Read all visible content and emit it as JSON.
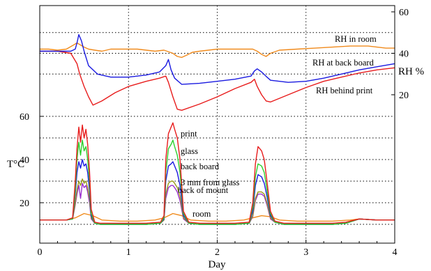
{
  "chart_data": {
    "type": "line",
    "xlabel": "Day",
    "ylabel_left": "T°C",
    "ylabel_right": "RH %",
    "xlim": [
      0,
      4
    ],
    "x_ticks": [
      0,
      1,
      2,
      3,
      4
    ],
    "ylim_temperature": [
      0,
      60
    ],
    "y_ticks_temperature": [
      20,
      40,
      60
    ],
    "ylim_rh": [
      0,
      60
    ],
    "y_ticks_rh": [
      20,
      40,
      60
    ],
    "grid": true,
    "series": [
      {
        "name": "RH in room",
        "axis": "rh",
        "color": "#f08a1c",
        "x": [
          0,
          0.1,
          0.2,
          0.3,
          0.38,
          0.42,
          0.46,
          0.5,
          0.55,
          0.62,
          0.7,
          0.8,
          0.9,
          1.0,
          1.1,
          1.2,
          1.3,
          1.4,
          1.5,
          1.55,
          1.6,
          1.65,
          1.72,
          1.8,
          1.9,
          2.0,
          2.2,
          2.4,
          2.45,
          2.5,
          2.55,
          2.6,
          2.7,
          2.9,
          3.1,
          3.3,
          3.5,
          3.6,
          3.7,
          3.8,
          3.9,
          4.0
        ],
        "values": [
          42,
          42,
          41.5,
          42,
          44,
          45,
          44,
          43,
          42,
          41.5,
          41,
          42,
          42,
          42,
          42,
          41.5,
          41,
          41.5,
          40,
          38.5,
          38,
          39,
          40.5,
          41,
          41.5,
          42,
          42,
          42,
          41,
          39.5,
          38.5,
          40,
          41.5,
          42,
          42.5,
          43,
          43.5,
          43.5,
          43.5,
          43,
          42.5,
          42.5
        ]
      },
      {
        "name": "RH at back board",
        "axis": "rh",
        "color": "#1a1ae0",
        "x": [
          0,
          0.2,
          0.35,
          0.4,
          0.42,
          0.44,
          0.47,
          0.5,
          0.55,
          0.65,
          0.8,
          1.0,
          1.2,
          1.35,
          1.42,
          1.45,
          1.48,
          1.52,
          1.6,
          1.8,
          2.0,
          2.2,
          2.38,
          2.42,
          2.45,
          2.5,
          2.56,
          2.6,
          2.8,
          3.0,
          3.2,
          3.4,
          3.6,
          3.8,
          4.0
        ],
        "values": [
          41,
          41,
          41,
          42,
          45,
          49,
          46,
          41,
          34,
          30,
          28.5,
          28.5,
          29.5,
          31,
          34,
          37,
          32,
          28,
          25,
          25.5,
          26.5,
          27.5,
          29,
          31.5,
          32.5,
          31,
          28.5,
          27,
          26,
          26.5,
          28,
          30,
          32,
          33.5,
          35
        ]
      },
      {
        "name": "RH behind print",
        "axis": "rh",
        "color": "#e81c1c",
        "x": [
          0,
          0.2,
          0.35,
          0.42,
          0.45,
          0.5,
          0.55,
          0.6,
          0.7,
          0.85,
          1.0,
          1.2,
          1.35,
          1.42,
          1.45,
          1.5,
          1.55,
          1.6,
          1.8,
          2.0,
          2.2,
          2.38,
          2.42,
          2.45,
          2.5,
          2.55,
          2.6,
          2.8,
          3.0,
          3.2,
          3.4,
          3.6,
          3.8,
          4.0
        ],
        "values": [
          41,
          41,
          40,
          35,
          30,
          24,
          19,
          15,
          17,
          21,
          24,
          26.5,
          28,
          29,
          26,
          19,
          13,
          12.5,
          15.5,
          19,
          23,
          26,
          27.5,
          24,
          20,
          17,
          16.5,
          20,
          23.5,
          26.5,
          28.5,
          30.5,
          32,
          33
        ]
      },
      {
        "name": "print",
        "axis": "temperature",
        "color": "#e81c1c",
        "x": [
          0,
          0.3,
          0.37,
          0.4,
          0.42,
          0.44,
          0.46,
          0.48,
          0.5,
          0.52,
          0.54,
          0.56,
          0.58,
          0.62,
          0.68,
          0.8,
          1.0,
          1.2,
          1.36,
          1.4,
          1.42,
          1.45,
          1.48,
          1.5,
          1.52,
          1.55,
          1.58,
          1.62,
          1.68,
          1.8,
          2.0,
          2.2,
          2.36,
          2.4,
          2.43,
          2.46,
          2.5,
          2.53,
          2.56,
          2.6,
          2.65,
          2.75,
          3.0,
          3.3,
          3.45,
          3.6,
          3.8,
          4.0
        ],
        "values": [
          12,
          12,
          13,
          30,
          45,
          55,
          48,
          56,
          50,
          54,
          47,
          35,
          17,
          11,
          10.5,
          10.5,
          10.5,
          10.5,
          11,
          14,
          40,
          52,
          55,
          57,
          54,
          50,
          40,
          16,
          11,
          10.5,
          10.5,
          10.5,
          11,
          20,
          38,
          46,
          44,
          40,
          30,
          16,
          11.5,
          10.5,
          10.5,
          10.5,
          11,
          12.5,
          12,
          12
        ]
      },
      {
        "name": "glass",
        "axis": "temperature",
        "color": "#2ed02e",
        "x": [
          0,
          0.3,
          0.37,
          0.4,
          0.42,
          0.44,
          0.46,
          0.48,
          0.5,
          0.52,
          0.54,
          0.56,
          0.58,
          0.62,
          0.68,
          0.8,
          1.0,
          1.2,
          1.36,
          1.4,
          1.42,
          1.45,
          1.48,
          1.5,
          1.52,
          1.55,
          1.58,
          1.62,
          1.68,
          1.8,
          2.0,
          2.2,
          2.36,
          2.4,
          2.43,
          2.46,
          2.5,
          2.53,
          2.56,
          2.6,
          2.65,
          2.75,
          3.0,
          3.3,
          3.45,
          3.6,
          3.8,
          4.0
        ],
        "values": [
          12,
          12,
          12.5,
          26,
          40,
          48,
          42,
          49,
          44,
          46,
          40,
          30,
          15,
          10.5,
          10,
          10,
          10,
          10,
          10.5,
          13,
          34,
          45,
          47,
          49,
          46,
          42,
          34,
          15,
          10.5,
          10,
          10,
          10,
          10.5,
          18,
          32,
          38,
          37,
          34,
          26,
          15,
          11,
          10,
          10,
          10,
          10.5,
          12.5,
          12,
          12
        ]
      },
      {
        "name": "back board",
        "axis": "temperature",
        "color": "#1a1ae0",
        "x": [
          0,
          0.3,
          0.37,
          0.4,
          0.42,
          0.44,
          0.46,
          0.48,
          0.5,
          0.52,
          0.54,
          0.56,
          0.58,
          0.62,
          0.68,
          0.8,
          1.0,
          1.2,
          1.36,
          1.4,
          1.42,
          1.45,
          1.48,
          1.5,
          1.52,
          1.55,
          1.58,
          1.62,
          1.68,
          1.8,
          2.0,
          2.2,
          2.36,
          2.4,
          2.43,
          2.46,
          2.5,
          2.53,
          2.56,
          2.6,
          2.65,
          2.75,
          3.0,
          3.3,
          3.45,
          3.6,
          3.8,
          4.0
        ],
        "values": [
          12,
          12,
          12.5,
          24,
          34,
          39,
          36,
          40,
          37,
          38,
          34,
          26,
          14,
          10.5,
          10,
          10,
          10,
          10,
          10.5,
          12.5,
          30,
          37,
          38,
          39,
          37,
          34,
          28,
          14,
          10.5,
          10,
          10,
          10,
          10.5,
          16,
          28,
          33,
          32,
          29,
          23,
          14,
          11,
          10,
          10,
          10,
          10.5,
          12.5,
          12,
          12
        ]
      },
      {
        "name": "3 mm from glass",
        "axis": "temperature",
        "color": "#9a9a1c",
        "x": [
          0,
          0.3,
          0.37,
          0.4,
          0.42,
          0.44,
          0.46,
          0.48,
          0.5,
          0.52,
          0.54,
          0.56,
          0.58,
          0.62,
          0.68,
          0.8,
          1.0,
          1.2,
          1.36,
          1.4,
          1.42,
          1.45,
          1.48,
          1.5,
          1.52,
          1.55,
          1.58,
          1.62,
          1.68,
          1.8,
          2.0,
          2.2,
          2.36,
          2.4,
          2.43,
          2.46,
          2.5,
          2.53,
          2.56,
          2.6,
          2.65,
          2.75,
          3.0,
          3.3,
          3.45,
          3.6,
          3.8,
          4.0
        ],
        "values": [
          12,
          12,
          12.5,
          20,
          26,
          30,
          28,
          31,
          29,
          30,
          27,
          22,
          13,
          10.5,
          10,
          10,
          10,
          10,
          10.5,
          12,
          24,
          29,
          30,
          30,
          29,
          27,
          23,
          13,
          10.5,
          10,
          10,
          10,
          10.5,
          14,
          22,
          25,
          25,
          24,
          20,
          13,
          11,
          10,
          10,
          10,
          10.5,
          12.5,
          12,
          12
        ]
      },
      {
        "name": "back of mount",
        "axis": "temperature",
        "color": "#9b2ed0",
        "x": [
          0,
          0.3,
          0.37,
          0.4,
          0.42,
          0.44,
          0.46,
          0.48,
          0.5,
          0.52,
          0.54,
          0.56,
          0.58,
          0.62,
          0.68,
          0.8,
          1.0,
          1.2,
          1.36,
          1.4,
          1.42,
          1.45,
          1.48,
          1.5,
          1.52,
          1.55,
          1.58,
          1.62,
          1.68,
          1.8,
          2.0,
          2.2,
          2.36,
          2.4,
          2.43,
          2.46,
          2.5,
          2.53,
          2.56,
          2.6,
          2.65,
          2.75,
          3.0,
          3.3,
          3.45,
          3.6,
          3.8,
          4.0
        ],
        "values": [
          12,
          12,
          12.5,
          19,
          24,
          28,
          22,
          29,
          27,
          28,
          25,
          20,
          12.5,
          10.5,
          10,
          10,
          10,
          10,
          10.5,
          12,
          22,
          27,
          28,
          28,
          27,
          25,
          21,
          12.5,
          10.5,
          10,
          10,
          10,
          10.5,
          13.5,
          21,
          24,
          24,
          23,
          19,
          12.5,
          11,
          10,
          10,
          10,
          10.5,
          12.5,
          12,
          12
        ]
      },
      {
        "name": "room",
        "axis": "temperature",
        "color": "#f08a1c",
        "x": [
          0,
          0.3,
          0.4,
          0.5,
          0.6,
          0.7,
          0.9,
          1.1,
          1.3,
          1.4,
          1.5,
          1.6,
          1.7,
          1.9,
          2.1,
          2.3,
          2.4,
          2.5,
          2.6,
          2.7,
          2.9,
          3.1,
          3.3,
          3.5,
          3.6,
          3.8,
          4.0
        ],
        "values": [
          12,
          12,
          13,
          15,
          14,
          12,
          11.5,
          11.5,
          12,
          13,
          15,
          14,
          12,
          11.5,
          11.5,
          12,
          13,
          14,
          13.5,
          12,
          11.5,
          11.5,
          11.5,
          12,
          12.5,
          12,
          12
        ]
      }
    ],
    "annotations": [
      {
        "text": "RH in room",
        "series": "RH in room"
      },
      {
        "text": "RH at back board",
        "series": "RH at back board"
      },
      {
        "text": "RH behind print",
        "series": "RH behind print"
      },
      {
        "text": "print",
        "series": "print"
      },
      {
        "text": "glass",
        "series": "glass"
      },
      {
        "text": "back board",
        "series": "back board"
      },
      {
        "text": "3 mm from glass",
        "series": "3 mm from glass"
      },
      {
        "text": "back of mount",
        "series": "back of mount"
      },
      {
        "text": "room",
        "series": "room"
      }
    ]
  }
}
